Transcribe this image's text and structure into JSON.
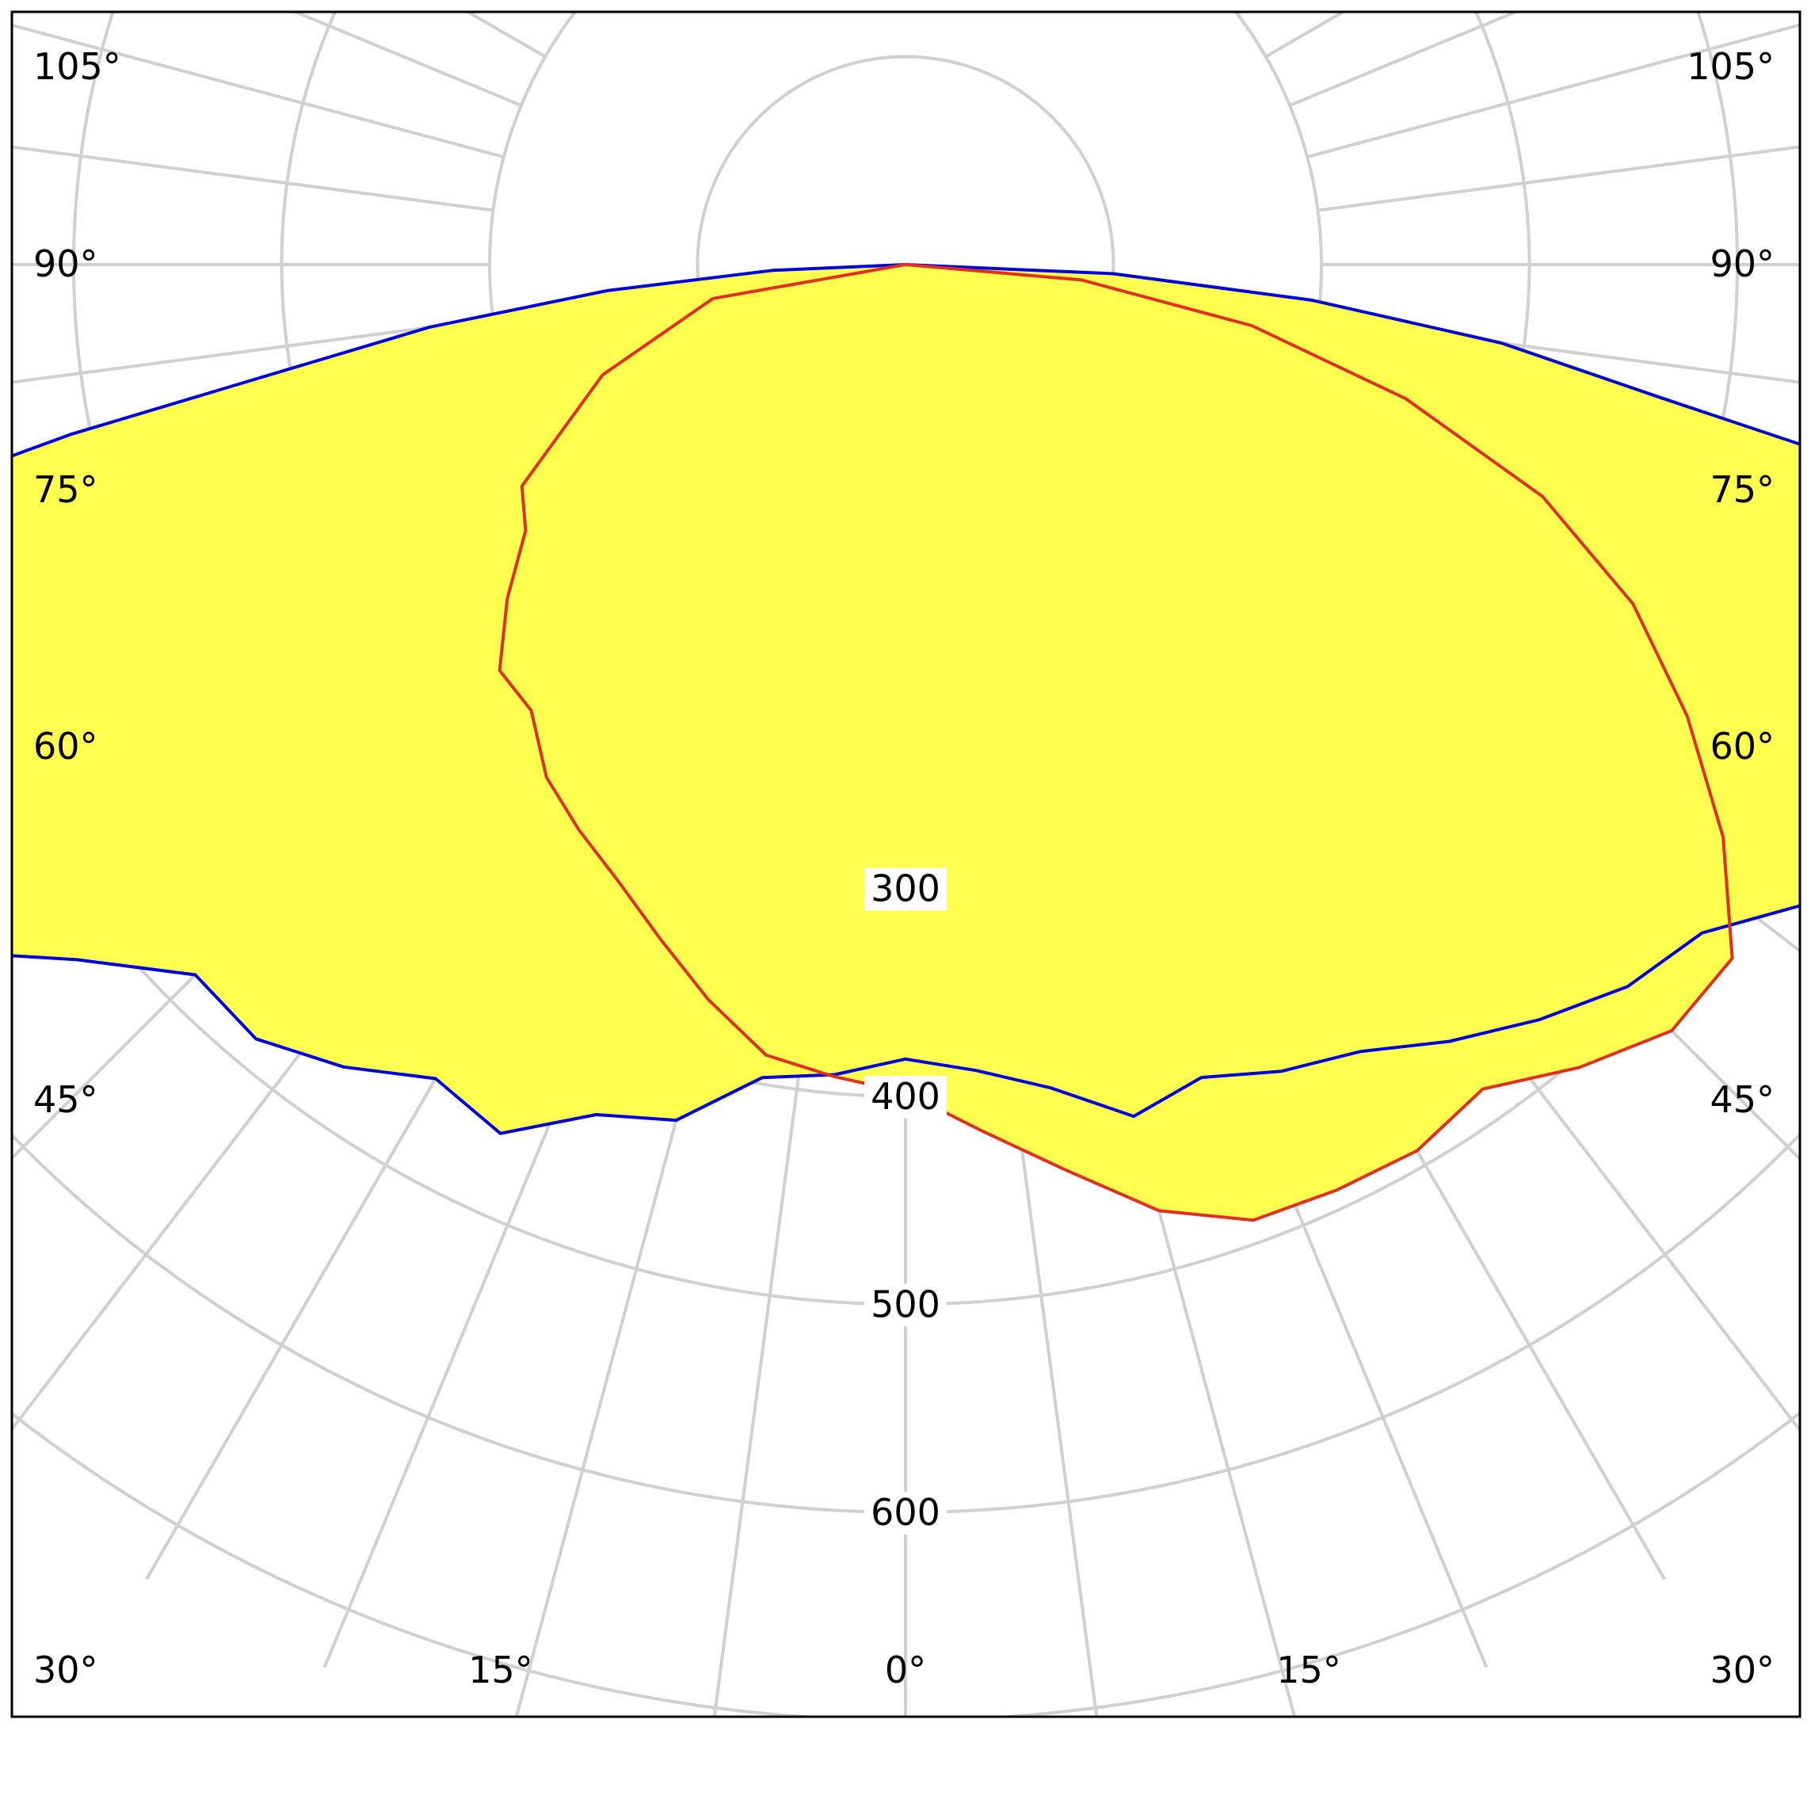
{
  "chart_data": {
    "type": "polar",
    "subtype": "luminous-intensity-distribution",
    "title": "",
    "radial_unit": "",
    "radial_max_rendered": 730,
    "radial_ticks": [
      100,
      200,
      300,
      400,
      500,
      600,
      700
    ],
    "radial_tick_labels": [
      {
        "value": 300,
        "text": "300"
      },
      {
        "value": 400,
        "text": "400"
      },
      {
        "value": 500,
        "text": "500"
      },
      {
        "value": 600,
        "text": "600"
      }
    ],
    "angle_labels_left": [
      "105°",
      "90°",
      "75°",
      "60°",
      "45°",
      "30°"
    ],
    "angle_labels_bottom": [
      "15°",
      "0°",
      "15°"
    ],
    "angle_labels_right": [
      "105°",
      "90°",
      "75°",
      "60°",
      "45°",
      "30°"
    ],
    "spoke_step_deg": 7.5,
    "fill_color": "#ffff50",
    "grid_color": "#d0d0d0",
    "series": [
      {
        "color": "#0000dd",
        "points": [
          {
            "angle": 90,
            "value": 0
          },
          {
            "angle": 87.5,
            "value": 64
          },
          {
            "angle": 85,
            "value": 144
          },
          {
            "angle": 82.5,
            "value": 231
          },
          {
            "angle": 80,
            "value": 318
          },
          {
            "angle": 78.5,
            "value": 410
          },
          {
            "angle": 77,
            "value": 496
          },
          {
            "angle": 76,
            "value": 573
          },
          {
            "angle": 76,
            "value": 618
          },
          {
            "angle": 72.5,
            "value": 640
          },
          {
            "angle": 70,
            "value": 633
          },
          {
            "angle": 68,
            "value": 587
          },
          {
            "angle": 65,
            "value": 592
          },
          {
            "angle": 60,
            "value": 580
          },
          {
            "angle": 55,
            "value": 575
          },
          {
            "angle": 50,
            "value": 520
          },
          {
            "angle": 45,
            "value": 483
          },
          {
            "angle": 40,
            "value": 486
          },
          {
            "angle": 35,
            "value": 471
          },
          {
            "angle": 30,
            "value": 452
          },
          {
            "angle": 25,
            "value": 461
          },
          {
            "angle": 20,
            "value": 435
          },
          {
            "angle": 15,
            "value": 426
          },
          {
            "angle": 10,
            "value": 397
          },
          {
            "angle": 5,
            "value": 391
          },
          {
            "angle": 0,
            "value": 382
          },
          {
            "angle": -5,
            "value": 389
          },
          {
            "angle": -10,
            "value": 402
          },
          {
            "angle": -15,
            "value": 424
          },
          {
            "angle": -20,
            "value": 416
          },
          {
            "angle": -25,
            "value": 428
          },
          {
            "angle": -30,
            "value": 437
          },
          {
            "angle": -35,
            "value": 456
          },
          {
            "angle": -40,
            "value": 474
          },
          {
            "angle": -45,
            "value": 491
          },
          {
            "angle": -50,
            "value": 500
          },
          {
            "angle": -55,
            "value": 534
          },
          {
            "angle": -60,
            "value": 566
          },
          {
            "angle": -65,
            "value": 577
          },
          {
            "angle": -67.5,
            "value": 589
          },
          {
            "angle": -70,
            "value": 632
          },
          {
            "angle": -72.5,
            "value": 637
          },
          {
            "angle": -75,
            "value": 633
          },
          {
            "angle": -76,
            "value": 615
          },
          {
            "angle": -76,
            "value": 602
          },
          {
            "angle": -77,
            "value": 529
          },
          {
            "angle": -78.5,
            "value": 448
          },
          {
            "angle": -80,
            "value": 369
          },
          {
            "angle": -82.5,
            "value": 289
          },
          {
            "angle": -85,
            "value": 196
          },
          {
            "angle": -87.5,
            "value": 100
          },
          {
            "angle": -90,
            "value": 0
          }
        ]
      },
      {
        "color": "#e03020",
        "points": [
          {
            "angle": 90,
            "value": 0
          },
          {
            "angle": 80,
            "value": 94
          },
          {
            "angle": 70,
            "value": 155
          },
          {
            "angle": 60,
            "value": 213
          },
          {
            "angle": 55,
            "value": 223
          },
          {
            "angle": 50,
            "value": 250
          },
          {
            "angle": 45,
            "value": 276
          },
          {
            "angle": 40,
            "value": 280
          },
          {
            "angle": 35,
            "value": 301
          },
          {
            "angle": 30,
            "value": 314
          },
          {
            "angle": 25,
            "value": 327
          },
          {
            "angle": 20,
            "value": 345
          },
          {
            "angle": 15,
            "value": 366
          },
          {
            "angle": 10,
            "value": 386
          },
          {
            "angle": 5,
            "value": 392
          },
          {
            "angle": 0,
            "value": 398
          },
          {
            "angle": -5,
            "value": 418
          },
          {
            "angle": -10,
            "value": 442
          },
          {
            "angle": -15,
            "value": 471
          },
          {
            "angle": -20,
            "value": 489
          },
          {
            "angle": -25,
            "value": 491
          },
          {
            "angle": -30,
            "value": 492
          },
          {
            "angle": -35,
            "value": 484
          },
          {
            "angle": -40,
            "value": 504
          },
          {
            "angle": -45,
            "value": 521
          },
          {
            "angle": -50,
            "value": 519
          },
          {
            "angle": -55,
            "value": 480
          },
          {
            "angle": -60,
            "value": 434
          },
          {
            "angle": -65,
            "value": 386
          },
          {
            "angle": -70,
            "value": 326
          },
          {
            "angle": -75,
            "value": 249
          },
          {
            "angle": -80,
            "value": 169
          },
          {
            "angle": -85,
            "value": 85
          },
          {
            "angle": -90,
            "value": 0
          }
        ]
      }
    ]
  }
}
